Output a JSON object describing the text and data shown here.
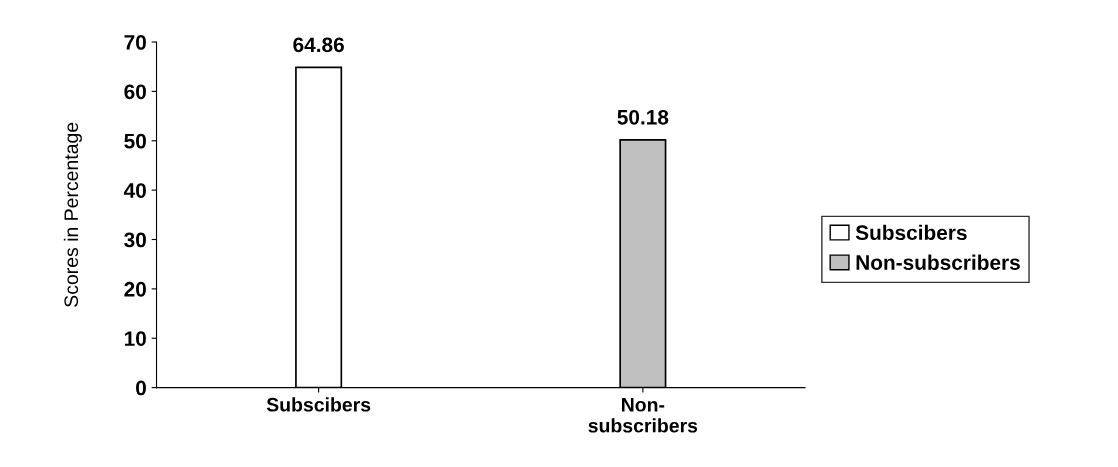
{
  "chart_data": {
    "type": "bar",
    "ylabel": "Scores in Percentage",
    "categories": [
      "Subscibers",
      "Non-\nsubscribers"
    ],
    "series": [
      {
        "name": "Subscibers",
        "color": "#ffffff",
        "values": [
          64.86,
          null
        ]
      },
      {
        "name": "Non-subscribers",
        "color": "#c0c0c0",
        "values": [
          null,
          50.18
        ]
      }
    ],
    "ylim": [
      0,
      70
    ],
    "yticks": [
      0,
      10,
      20,
      30,
      40,
      50,
      60,
      70
    ],
    "data_labels": true,
    "legend": "right",
    "grid": false
  }
}
